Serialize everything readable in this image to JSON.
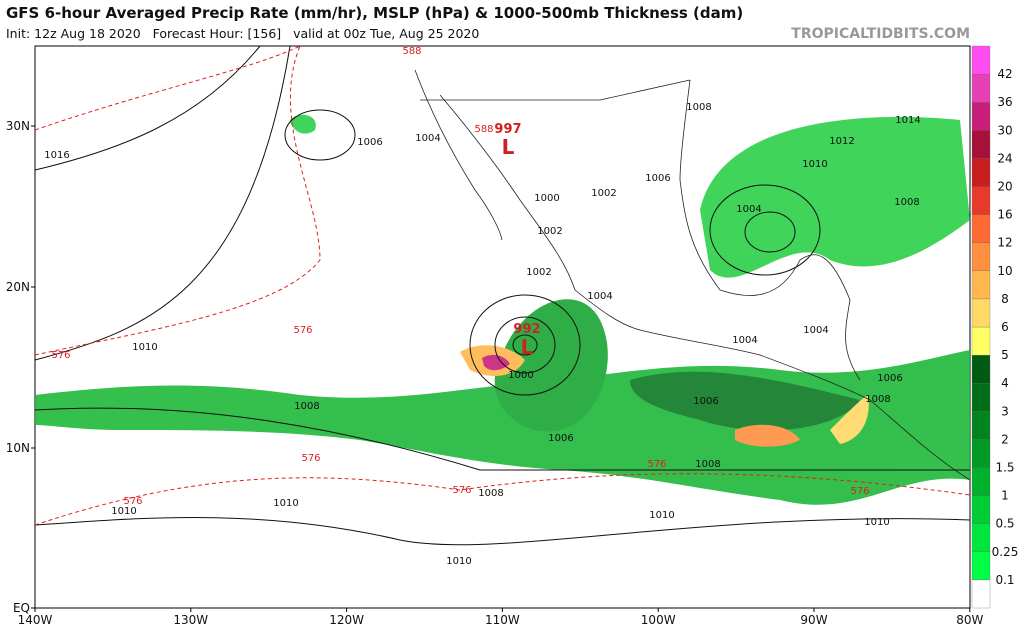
{
  "header": {
    "title": "GFS 6-hour Averaged Precip Rate (mm/hr), MSLP (hPa) & 1000-500mb Thickness (dam)",
    "subtitle": "Init: 12z Aug 18 2020   Forecast Hour: [156]   valid at 00z Tue, Aug 25 2020",
    "source": "TROPICALTIDBITS.COM"
  },
  "map": {
    "latitude_labels": [
      "30N",
      "20N",
      "10N",
      "EQ"
    ],
    "longitude_labels": [
      "140W",
      "130W",
      "120W",
      "110W",
      "100W",
      "90W",
      "80W"
    ],
    "isobar_labels": [
      "1016",
      "1006",
      "1004",
      "1000",
      "1002",
      "1002",
      "1006",
      "1008",
      "1012",
      "1010",
      "1004",
      "1008",
      "1014",
      "1002",
      "1004",
      "1004",
      "1004",
      "1010",
      "1000",
      "1008",
      "1006",
      "1006",
      "1006",
      "1008",
      "1008",
      "1008",
      "1010",
      "1010",
      "1010",
      "1010",
      "1010"
    ],
    "thickness_labels": [
      "588",
      "588",
      "576",
      "576",
      "576",
      "576",
      "576",
      "576",
      "576"
    ],
    "lows": [
      {
        "pressure": "997",
        "symbol": "L"
      },
      {
        "pressure": "992",
        "symbol": "L"
      }
    ]
  },
  "colorbar": {
    "labels": [
      "0.1",
      "0.25",
      "0.5",
      "1",
      "1.5",
      "2",
      "3",
      "4",
      "5",
      "6",
      "8",
      "10",
      "12",
      "16",
      "20",
      "24",
      "30",
      "36",
      "42"
    ],
    "colors": [
      "#ffffff",
      "#00ff44",
      "#00e63c",
      "#00cc33",
      "#00b22b",
      "#009a24",
      "#00841e",
      "#006e18",
      "#005a12",
      "#ffff66",
      "#ffd966",
      "#ffb84d",
      "#ff9040",
      "#ff6a33",
      "#e83a2a",
      "#c81e1e",
      "#a8103c",
      "#c8207a",
      "#e640b4",
      "#ff4ef0"
    ]
  }
}
